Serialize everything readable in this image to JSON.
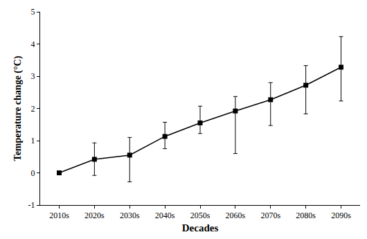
{
  "chart_data": {
    "type": "line",
    "x_label": "Decades",
    "y_label": "Temperature change (°C)",
    "categories": [
      "2010s",
      "2020s",
      "2030s",
      "2040s",
      "2050s",
      "2060s",
      "2070s",
      "2080s",
      "2090s"
    ],
    "values": [
      0,
      0.42,
      0.55,
      1.13,
      1.55,
      1.92,
      2.27,
      2.72,
      3.28
    ],
    "error_plus": [
      0,
      0.51,
      0.55,
      0.44,
      0.52,
      0.45,
      0.53,
      0.61,
      0.95
    ],
    "error_minus": [
      0,
      0.5,
      0.83,
      0.38,
      0.33,
      1.32,
      0.8,
      0.89,
      1.05
    ],
    "color": "#000000",
    "marker": "square",
    "line_style": "solid",
    "ylim": [
      -1,
      5
    ],
    "yticks": [
      -1,
      0,
      1,
      2,
      3,
      4,
      5
    ],
    "grid": false
  }
}
